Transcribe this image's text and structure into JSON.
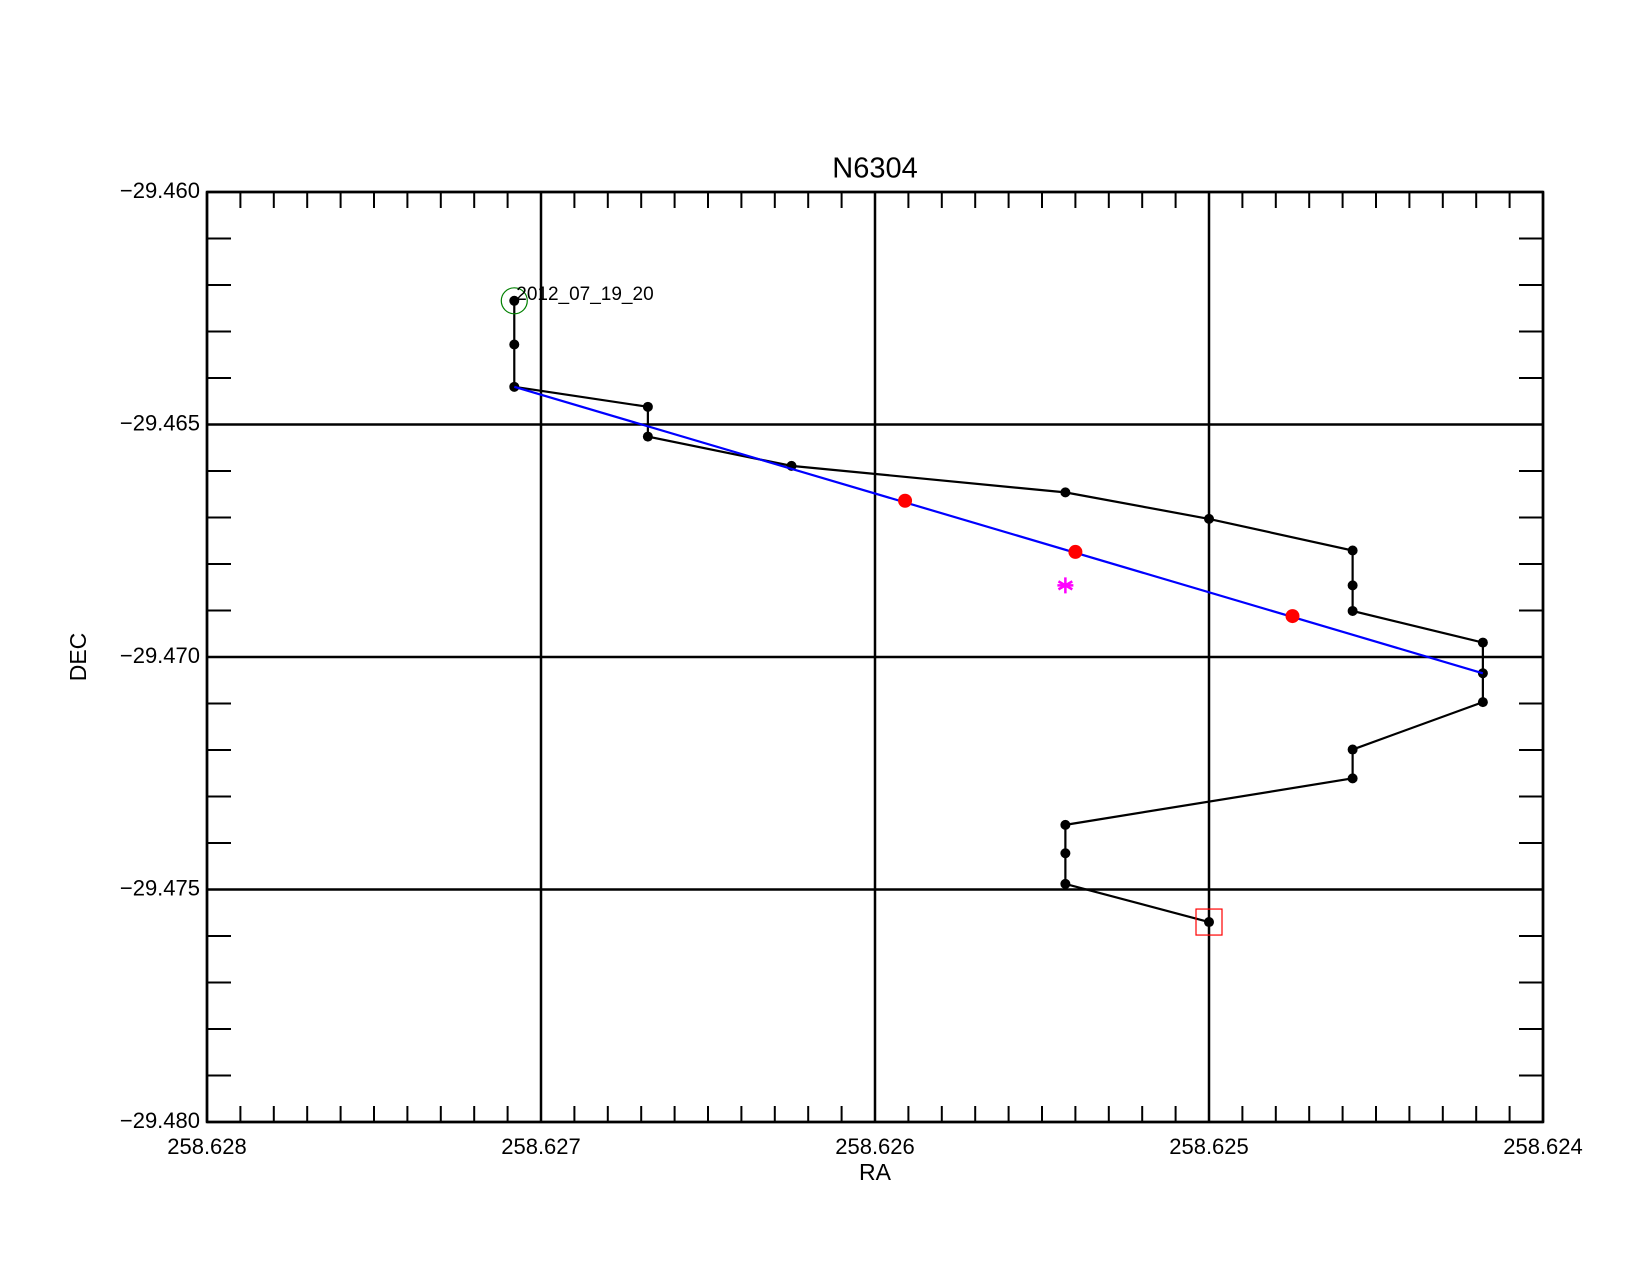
{
  "chart_data": {
    "type": "line",
    "title": "N6304",
    "x_label": "RA",
    "y_label": "DEC",
    "annotation": "2012_07_19_20",
    "xlim": [
      258.628,
      258.624
    ],
    "ylim": [
      -29.48,
      -29.46
    ],
    "xticks": [
      258.628,
      258.627,
      258.626,
      258.625,
      258.624
    ],
    "yticks": [
      {
        "value": -29.48,
        "label": "−29.480"
      },
      {
        "value": -29.475,
        "label": "−29.475"
      },
      {
        "value": -29.47,
        "label": "−29.470"
      },
      {
        "value": -29.465,
        "label": "−29.465"
      },
      {
        "value": -29.46,
        "label": "−29.460"
      }
    ],
    "xminorticks": [
      258.6279,
      258.6278,
      258.6277,
      258.6276,
      258.6275,
      258.6274,
      258.6273,
      258.6272,
      258.6271,
      258.6269,
      258.6268,
      258.6267,
      258.6266,
      258.6265,
      258.6264,
      258.6263,
      258.6262,
      258.6261,
      258.6259,
      258.6258,
      258.6257,
      258.6256,
      258.6255,
      258.6254,
      258.6253,
      258.6252,
      258.6251,
      258.6249,
      258.6248,
      258.6247,
      258.6246,
      258.6245,
      258.6244,
      258.6243,
      258.6242,
      258.6241
    ],
    "yminorticks": [
      -29.461,
      -29.462,
      -29.463,
      -29.464,
      -29.466,
      -29.467,
      -29.468,
      -29.469,
      -29.471,
      -29.472,
      -29.473,
      -29.474,
      -29.476,
      -29.477,
      -29.478,
      -29.479
    ],
    "grid": true,
    "series": [
      {
        "color": "#000000",
        "line": true,
        "marker": "dot",
        "start_marker": "circle",
        "start_color": "#008000",
        "end_marker": "square",
        "end_color": "#ff0000",
        "x": [
          258.62708,
          258.62708,
          258.62708,
          258.62668,
          258.62668,
          258.62625,
          258.62543,
          258.625,
          258.62457,
          258.62457,
          258.62457,
          258.62418,
          258.62418,
          258.62418,
          258.62457,
          258.62457,
          258.62543,
          258.62543,
          258.62543,
          258.625
        ],
        "values": [
          -29.46234,
          -29.46328,
          -29.46419,
          -29.46462,
          -29.46526,
          -29.46589,
          -29.46646,
          -29.46703,
          -29.46771,
          -29.46846,
          -29.46901,
          -29.46969,
          -29.47035,
          -29.47097,
          -29.47199,
          -29.47261,
          -29.47361,
          -29.47422,
          -29.47488,
          -29.4757
        ]
      },
      {
        "color": "#0000ff",
        "line": true,
        "marker": "none",
        "x": [
          258.62708,
          258.62418
        ],
        "values": [
          -29.46419,
          -29.47035
        ]
      },
      {
        "color": "#ff0000",
        "line": false,
        "marker": "bigdot",
        "x": [
          258.62591,
          258.6254,
          258.62475
        ],
        "values": [
          -29.46664,
          -29.46774,
          -29.46912
        ]
      },
      {
        "color": "#ff00ff",
        "line": false,
        "marker": "star",
        "x": [
          258.62543
        ],
        "values": [
          -29.46846
        ]
      }
    ]
  }
}
